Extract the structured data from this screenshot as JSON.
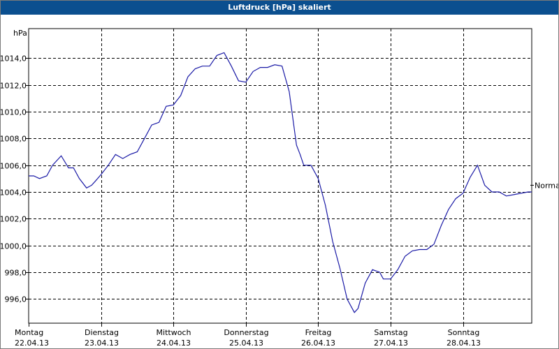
{
  "window": {
    "title": "Luftdruck [hPa] skaliert"
  },
  "chart_data": {
    "type": "line",
    "title": "Luftdruck [hPa] skaliert",
    "ylabel": "hPa",
    "xlabel": "",
    "ylim": [
      994.2,
      1016.2
    ],
    "xlim": [
      0,
      6.95
    ],
    "yticks": [
      996,
      998,
      1000,
      1002,
      1004,
      1006,
      1008,
      1010,
      1012,
      1014
    ],
    "ytick_labels": [
      "996,0",
      "998,0",
      "1000,0",
      "1002,0",
      "1004,0",
      "1006,0",
      "1008,0",
      "1010,0",
      "1012,0",
      "1014,0"
    ],
    "day_labels": [
      {
        "weekday": "Montag",
        "date": "22.04.13"
      },
      {
        "weekday": "Dienstag",
        "date": "23.04.13"
      },
      {
        "weekday": "Mittwoch",
        "date": "24.04.13"
      },
      {
        "weekday": "Donnerstag",
        "date": "25.04.13"
      },
      {
        "weekday": "Freitag",
        "date": "26.04.13"
      },
      {
        "weekday": "Samstag",
        "date": "27.04.13"
      },
      {
        "weekday": "Sonntag",
        "date": "28.04.13"
      }
    ],
    "grid": true,
    "line_color": "#1a1aa6",
    "reference_label": "Normal",
    "reference_value": 1004.5,
    "series": [
      {
        "name": "",
        "x": [
          0.0,
          0.07,
          0.15,
          0.25,
          0.33,
          0.45,
          0.55,
          0.62,
          0.7,
          0.8,
          0.87,
          0.92,
          1.0,
          1.1,
          1.2,
          1.3,
          1.4,
          1.5,
          1.6,
          1.7,
          1.8,
          1.9,
          2.0,
          2.1,
          2.2,
          2.3,
          2.4,
          2.5,
          2.6,
          2.7,
          2.8,
          2.9,
          3.0,
          3.1,
          3.2,
          3.3,
          3.4,
          3.5,
          3.6,
          3.7,
          3.75,
          3.8,
          3.9,
          4.0,
          4.1,
          4.2,
          4.3,
          4.4,
          4.5,
          4.55,
          4.65,
          4.75,
          4.85,
          4.9,
          5.0,
          5.1,
          5.2,
          5.3,
          5.4,
          5.5,
          5.6,
          5.7,
          5.8,
          5.9,
          6.0,
          6.1,
          6.2,
          6.3,
          6.4,
          6.5,
          6.6,
          6.7,
          6.8,
          6.9,
          6.95
        ],
        "values": [
          1005.2,
          1005.2,
          1005.0,
          1005.2,
          1006.0,
          1006.7,
          1005.8,
          1005.8,
          1005.0,
          1004.3,
          1004.5,
          1004.8,
          1005.3,
          1006.0,
          1006.8,
          1006.5,
          1006.8,
          1007.0,
          1008.0,
          1009.0,
          1009.2,
          1010.4,
          1010.5,
          1011.2,
          1012.6,
          1013.2,
          1013.4,
          1013.4,
          1014.2,
          1014.4,
          1013.4,
          1012.3,
          1012.2,
          1013.0,
          1013.3,
          1013.3,
          1013.5,
          1013.4,
          1011.5,
          1007.5,
          1006.8,
          1006.0,
          1006.0,
          1005.0,
          1003.0,
          1000.3,
          998.3,
          996.0,
          995.0,
          995.3,
          997.2,
          998.2,
          998.0,
          997.5,
          997.5,
          998.2,
          999.2,
          999.6,
          999.7,
          999.7,
          1000.1,
          1001.5,
          1002.7,
          1003.5,
          1003.9,
          1005.1,
          1006.0,
          1004.5,
          1004.0,
          1004.0,
          1003.7,
          1003.8,
          1003.9,
          1004.0,
          1004.0
        ]
      }
    ]
  }
}
